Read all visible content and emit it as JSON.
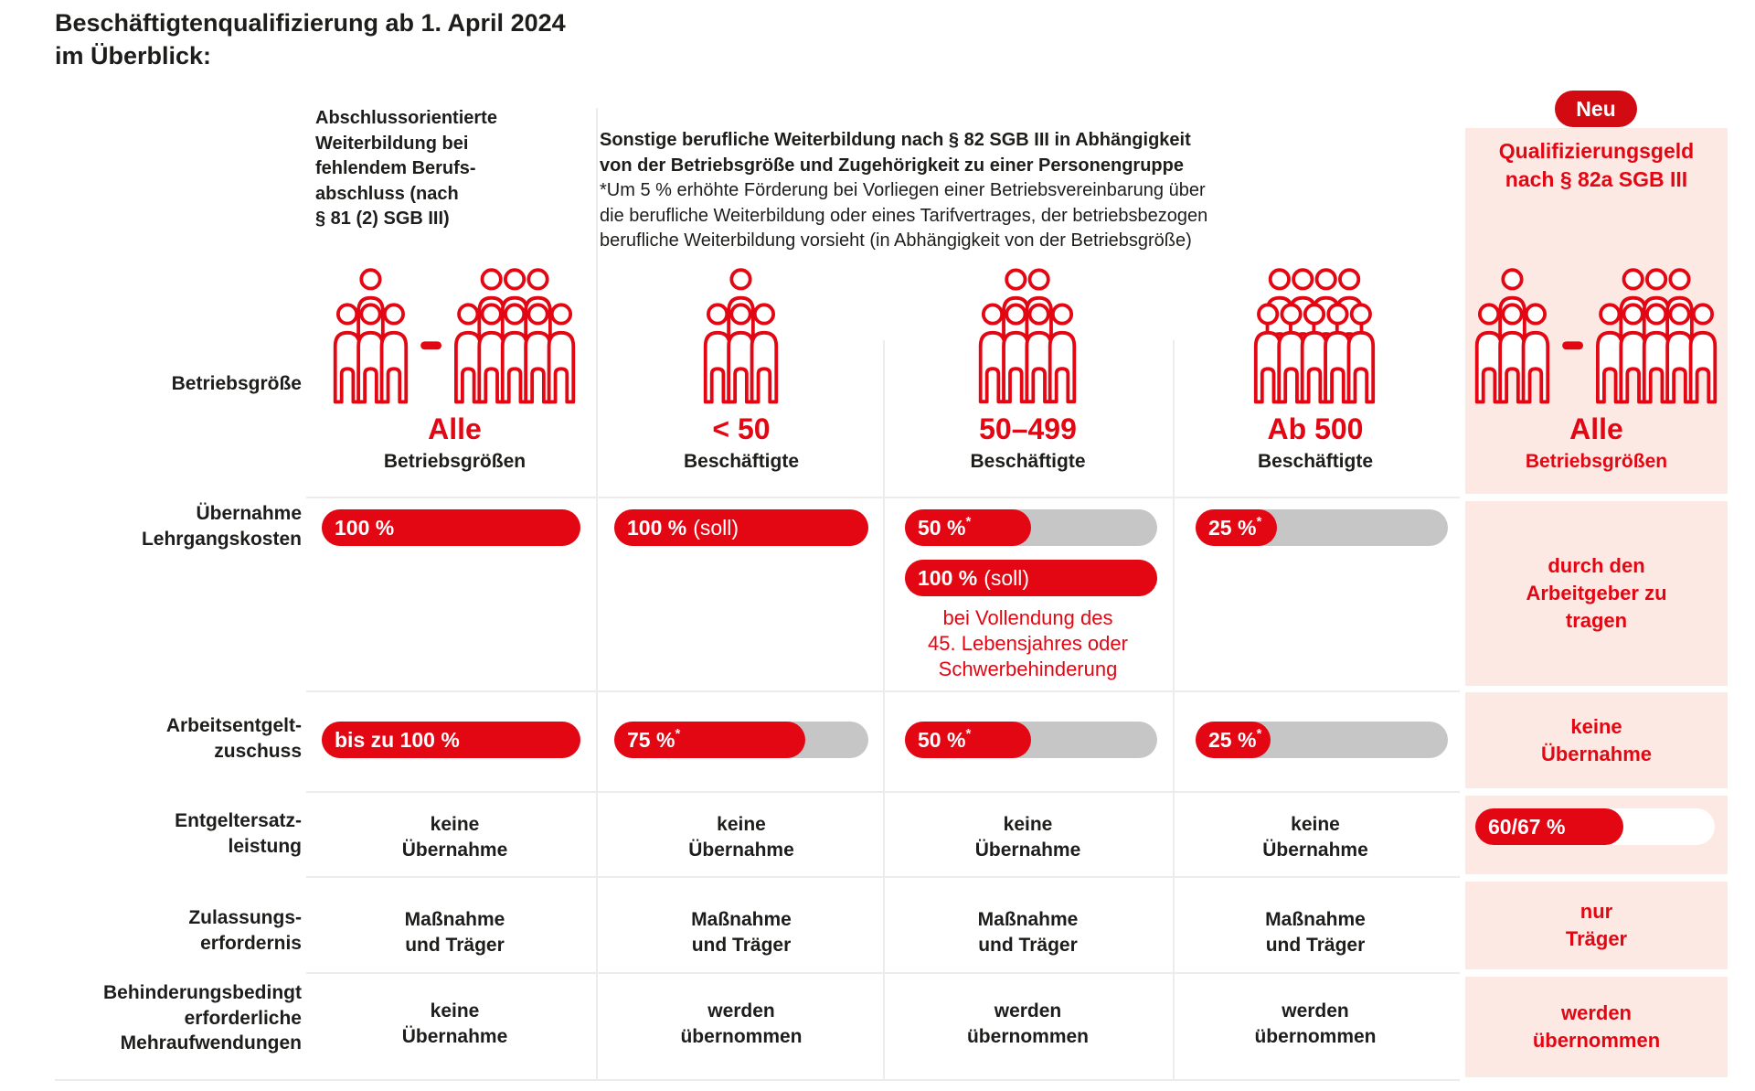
{
  "colors": {
    "red": "#e30613",
    "badge_red": "#d20a11",
    "pink": "#fce9e3",
    "track_grey": "#c6c6c6",
    "grid_line": "#ececec",
    "text_black": "#1d1d1b",
    "white_track": "#ffffff"
  },
  "title": "Beschäftigtenqualifizierung ab 1. April 2024\nim Überblick:",
  "header": {
    "col1_title": "Abschlussorientierte\nWeiterbildung bei\nfehlendem Berufs-\nabschluss (nach\n§ 81 (2) SGB III)",
    "span_title": "Sonstige berufliche Weiterbildung nach § 82 SGB III in Abhängigkeit\nvon der Betriebsgröße und Zugehörigkeit zu einer Personengruppe",
    "span_footnote": "*Um 5 % erhöhte Förderung bei Vorliegen einer Betriebsvereinbarung über\ndie berufliche Weiterbildung oder eines Tarifvertrages, der betriebsbezogen\nberufliche Weiterbildung vorsieht (in Abhängigkeit von der Betriebsgröße)",
    "badge": "Neu",
    "col5_title": "Qualifizierungsgeld\nnach § 82a SGB III"
  },
  "row_labels": {
    "betriebsgroesse": "Betriebsgröße",
    "lehrgangskosten": "Übernahme\nLehrgangskosten",
    "entgeltzuschuss": "Arbeitsentgelt-\nzuschuss",
    "entgeltersatz": "Entgeltersatz-\nleistung",
    "zulassung": "Zulassungs-\nerfordernis",
    "mehraufwendungen": "Behinderungsbedingt\nerforderliche\nMehraufwendungen"
  },
  "sizes": [
    {
      "value": "Alle",
      "unit": "Betriebsgrößen"
    },
    {
      "value": "< 50",
      "unit": "Beschäftigte"
    },
    {
      "value": "50–499",
      "unit": "Beschäftigte"
    },
    {
      "value": "Ab 500",
      "unit": "Beschäftigte"
    },
    {
      "value": "Alle",
      "unit": "Betriebsgrößen"
    }
  ],
  "rows": {
    "lehrgangskosten": {
      "bars": [
        {
          "label": "100 %",
          "percent": 100
        },
        {
          "label": "100 %",
          "suffix": "(soll)",
          "percent": 100
        },
        {
          "label": "50 %",
          "sup": "*",
          "percent": 50
        },
        {
          "label": "25 %",
          "sup": "*",
          "percent": 25
        }
      ],
      "extra_bar": {
        "label": "100 %",
        "suffix": "(soll)",
        "percent": 100
      },
      "extra_note": "bei Vollendung des\n45. Lebensjahres oder\nSchwerbehinderung",
      "col5": "durch den\nArbeitgeber zu\ntragen"
    },
    "entgeltzuschuss": {
      "bars": [
        {
          "label": "bis zu 100 %",
          "percent": 100
        },
        {
          "label": "75 %",
          "sup": "*",
          "percent": 75
        },
        {
          "label": "50 %",
          "sup": "*",
          "percent": 50
        },
        {
          "label": "25 %",
          "sup": "*",
          "percent": 25
        }
      ],
      "col5": "keine\nÜbernahme"
    },
    "entgeltersatz": {
      "cells": [
        "keine\nÜbernahme",
        "keine\nÜbernahme",
        "keine\nÜbernahme",
        "keine\nÜbernahme"
      ],
      "col5_bar": {
        "label": "60/67 %",
        "percent": 62
      }
    },
    "zulassung": {
      "cells": [
        "Maßnahme\nund Träger",
        "Maßnahme\nund Träger",
        "Maßnahme\nund Träger",
        "Maßnahme\nund Träger"
      ],
      "col5": "nur\nTräger"
    },
    "mehraufwendungen": {
      "cells": [
        "keine\nÜbernahme",
        "werden\nübernommen",
        "werden\nübernommen",
        "werden\nübernommen"
      ],
      "col5": "werden\nübernommen"
    }
  }
}
